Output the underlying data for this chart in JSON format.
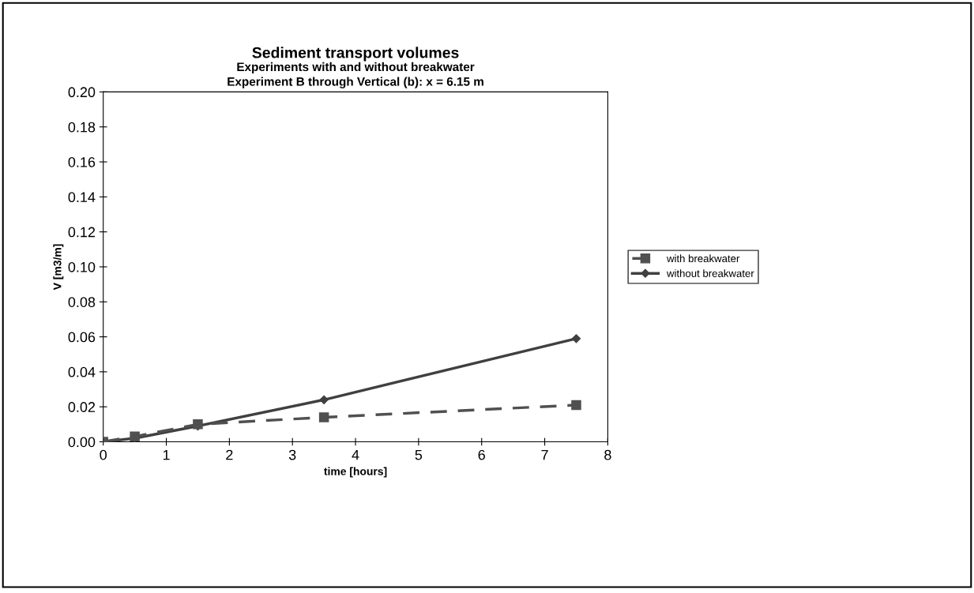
{
  "chart_data": {
    "type": "line",
    "title": "Sediment transport volumes",
    "subtitle": "Experiments with and without breakwater\nExperiment B through Vertical (b): x = 6.15 m",
    "xlabel": "time [hours]",
    "ylabel": "V [m3/m]",
    "x": [
      0,
      0.5,
      1.5,
      3.5,
      7.5
    ],
    "series": [
      {
        "name": "with breakwater",
        "color": "#505050",
        "values": [
          0,
          0.003,
          0.01,
          0.014,
          0.021
        ],
        "marker": "square",
        "line_style": "dashed"
      },
      {
        "name": "without breakwater",
        "color": "#404040",
        "values": [
          0,
          0.002,
          0.009,
          0.024,
          0.059
        ],
        "marker": "diamond",
        "line_style": "solid"
      }
    ],
    "xlim": [
      0,
      8
    ],
    "xticks": [
      0,
      1,
      2,
      3,
      4,
      5,
      6,
      7,
      8
    ],
    "ylim": [
      0,
      0.2
    ],
    "yticks": [
      {
        "value": 0,
        "label": "0.00"
      },
      {
        "value": 0.02,
        "label": "0.02"
      },
      {
        "value": 0.04,
        "label": "0.04"
      },
      {
        "value": 0.06,
        "label": "0.06"
      },
      {
        "value": 0.08,
        "label": "0.08"
      },
      {
        "value": 0.1,
        "label": "0.10"
      },
      {
        "value": 0.12,
        "label": "0.12"
      },
      {
        "value": 0.14,
        "label": "0.14"
      },
      {
        "value": 0.16,
        "label": "0.16"
      },
      {
        "value": 0.18,
        "label": "0.18"
      },
      {
        "value": 0.2,
        "label": "0.20"
      }
    ],
    "grid": false,
    "legend": "right"
  }
}
